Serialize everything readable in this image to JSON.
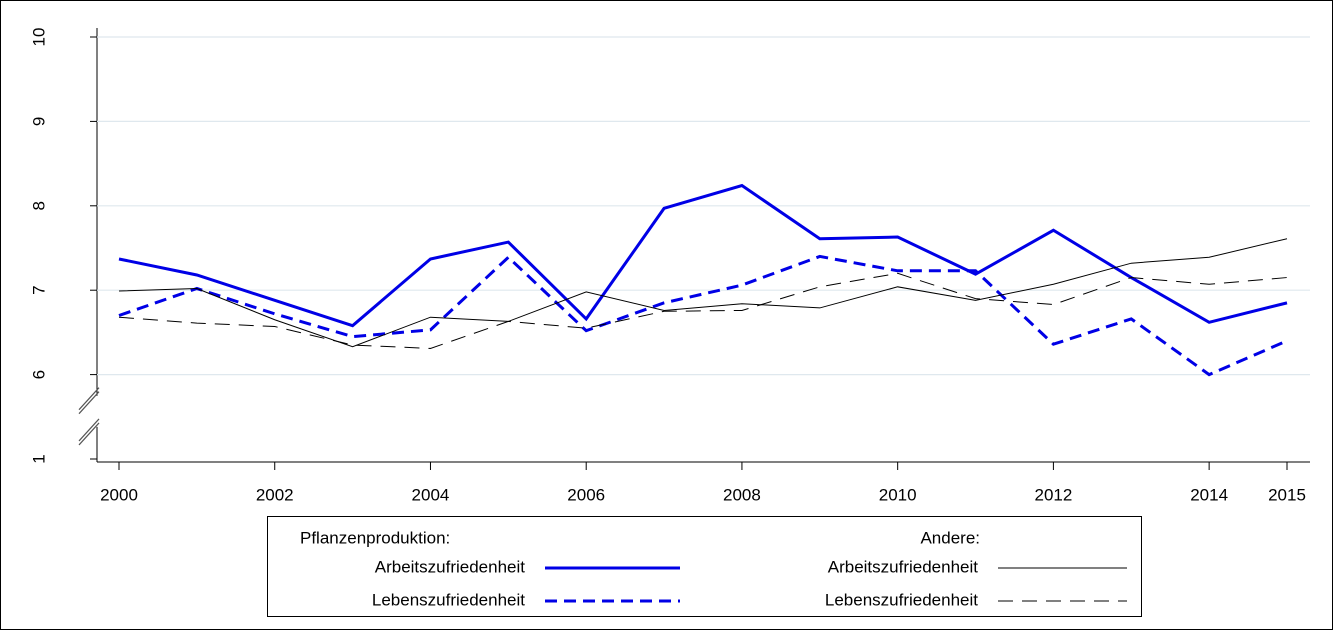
{
  "chart_data": {
    "type": "line",
    "x": [
      2000,
      2001,
      2002,
      2003,
      2004,
      2005,
      2006,
      2007,
      2008,
      2009,
      2010,
      2011,
      2012,
      2013,
      2014,
      2015
    ],
    "xlim": [
      2000,
      2015
    ],
    "xticks": [
      2000,
      2002,
      2004,
      2006,
      2008,
      2010,
      2012,
      2014,
      2015
    ],
    "ylim": [
      1,
      10
    ],
    "yticks": [
      1,
      6,
      7,
      8,
      9,
      10
    ],
    "y_break": [
      1,
      6
    ],
    "grid": true,
    "groups": [
      {
        "title": "Pflanzenproduktion:",
        "series": [
          {
            "name": "Arbeitszufriedenheit",
            "color": "#0000e6",
            "width": 3,
            "dash": "solid",
            "values": [
              7.37,
              7.18,
              6.88,
              6.58,
              7.37,
              7.57,
              6.66,
              7.97,
              8.24,
              7.61,
              7.63,
              7.19,
              7.71,
              7.15,
              6.62,
              6.85
            ]
          },
          {
            "name": "Lebenszufriedenheit",
            "color": "#0000e6",
            "width": 3,
            "dash": "dashed",
            "values": [
              6.7,
              7.02,
              6.72,
              6.45,
              6.53,
              7.39,
              6.52,
              6.85,
              7.06,
              7.4,
              7.23,
              7.23,
              6.36,
              6.66,
              6.0,
              6.4
            ]
          }
        ]
      },
      {
        "title": "Andere:",
        "series": [
          {
            "name": "Arbeitszufriedenheit",
            "color": "#000000",
            "width": 1,
            "dash": "solid",
            "values": [
              6.99,
              7.02,
              6.65,
              6.33,
              6.68,
              6.63,
              6.98,
              6.76,
              6.84,
              6.79,
              7.04,
              6.88,
              7.07,
              7.32,
              7.39,
              7.61
            ]
          },
          {
            "name": "Lebenszufriedenheit",
            "color": "#000000",
            "width": 1,
            "dash": "dashed",
            "values": [
              6.68,
              6.61,
              6.57,
              6.35,
              6.31,
              6.63,
              6.55,
              6.75,
              6.76,
              7.04,
              7.2,
              6.9,
              6.83,
              7.15,
              7.07,
              7.15
            ]
          }
        ]
      }
    ]
  }
}
